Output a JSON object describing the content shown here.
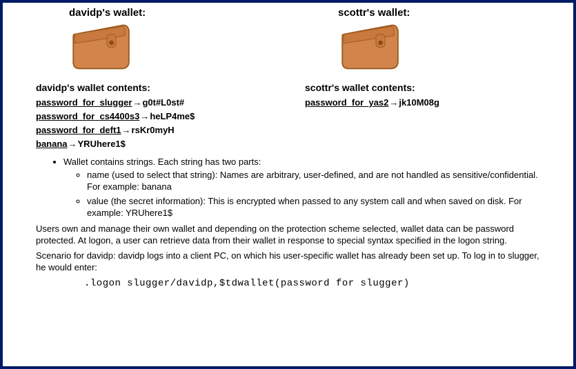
{
  "wallets": [
    {
      "title": "davidp's wallet:",
      "contents_title": "davidp's wallet contents:",
      "entries": [
        {
          "name": "password_for_slugger",
          "value": "g0t#L0st#"
        },
        {
          "name": "password_for_cs4400s3",
          "value": "heLP4me$"
        },
        {
          "name": "password_for_deft1",
          "value": "rsKr0myH"
        },
        {
          "name": "banana",
          "value": "YRUhere1$"
        }
      ]
    },
    {
      "title": "scottr's wallet:",
      "contents_title": "scottr's wallet contents:",
      "entries": [
        {
          "name": "password_for_yas2",
          "value": "jk10M08g"
        }
      ]
    }
  ],
  "arrow_glyph": "→",
  "bullet_main": "Wallet contains strings.  Each string has two parts:",
  "bullet_sub1": "name (used to select that string): Names are arbitrary, user-defined, and are not handled as sensitive/confidential.  For example: banana",
  "bullet_sub2": "value (the secret information): This is encrypted when passed to any system call and when saved on disk.  For example: YRUhere1$",
  "para1": "Users own and manage their own wallet and depending on the protection scheme selected, wallet data can be password protected. At logon, a user can retrieve data from their wallet in response to special syntax specified in the logon string.",
  "para2": "Scenario for davidp:  davidp logs into a client PC, on which his user-specific wallet has already been set up.  To log in to slugger, he would enter:",
  "logon_command": ".logon slugger/davidp,$tdwallet(password_for_slugger)",
  "wallet_icon": {
    "body_fill": "#d2854a",
    "body_stroke": "#9c5a20",
    "flap_fill": "#c9793e",
    "snap_fill": "#8a4a18"
  }
}
